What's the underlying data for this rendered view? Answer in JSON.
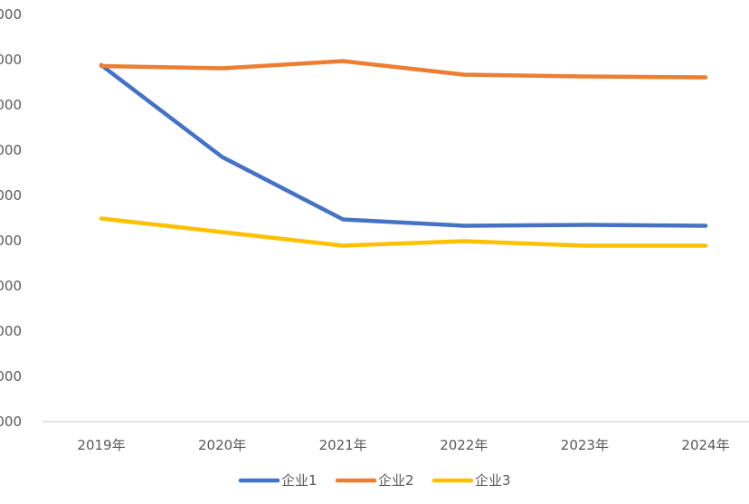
{
  "chart_data": {
    "type": "line",
    "categories": [
      "2019年",
      "2020年",
      "2021年",
      "2022年",
      "2023年",
      "2024年"
    ],
    "y_tick_labels": [
      "000",
      "000",
      "000",
      "000",
      "000",
      "000",
      "000",
      "000",
      "000",
      "000"
    ],
    "ylim": [
      0,
      9
    ],
    "grid": false,
    "legend_position": "bottom",
    "series": [
      {
        "name": "企业1",
        "color": "#4472C4",
        "values": [
          7.88,
          5.85,
          4.47,
          4.33,
          4.35,
          4.33
        ]
      },
      {
        "name": "企业2",
        "color": "#ED7D31",
        "values": [
          7.86,
          7.81,
          7.97,
          7.67,
          7.63,
          7.61
        ]
      },
      {
        "name": "企业3",
        "color": "#FFC000",
        "values": [
          4.49,
          4.19,
          3.89,
          3.99,
          3.89,
          3.89
        ]
      }
    ]
  }
}
